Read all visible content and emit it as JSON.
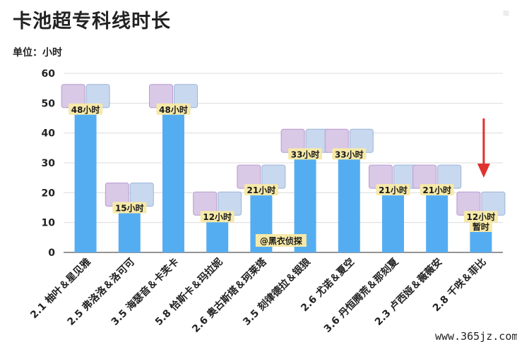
{
  "page": {
    "title": "卡池超专科线时长",
    "unit_label": "单位：小时",
    "credit": "@黑衣侦探",
    "site": "www.365jz.com",
    "note_label": "暂时",
    "highlight_color": "#e03030"
  },
  "chart_data": {
    "type": "bar",
    "title": "卡池超专科线时长",
    "xlabel": "",
    "ylabel": "单位：小时",
    "ylim": [
      0,
      60
    ],
    "yticks": [
      0,
      10,
      20,
      30,
      40,
      50,
      60
    ],
    "grid": true,
    "bar_color": "#55adf1",
    "categories": [
      "2.1 柚叶＆星见雅",
      "2.5 弗洛洛＆洛可可",
      "3.5 海瑟音＆卡芙卡",
      "5.8 恰斯卡＆玛拉妮",
      "2.6 奥古斯塔＆珂莱塔",
      "3.5 刻律德拉＆银狼",
      "2.6 尤诺＆夏空",
      "3.6 丹恒腾荒＆那刻夏",
      "2.3 卢西娅＆薇薇安",
      "2.8 千咲＆菲比"
    ],
    "values": [
      48,
      15,
      48,
      12,
      21,
      33,
      33,
      21,
      21,
      12
    ],
    "data_labels": [
      "48小时",
      "15小时",
      "48小时",
      "12小时",
      "21小时",
      "33小时",
      "33小时",
      "21小时",
      "21小时",
      "12小时"
    ]
  }
}
